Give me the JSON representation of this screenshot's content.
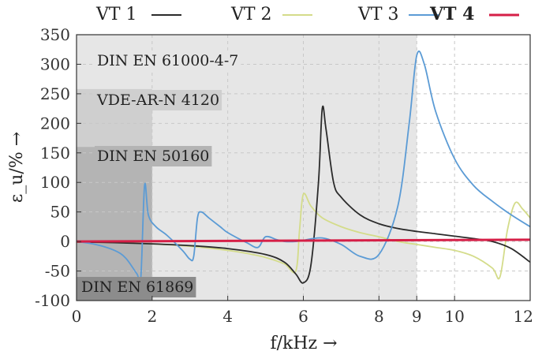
{
  "chart_data": {
    "type": "line",
    "xlabel": "f/kHz →",
    "ylabel": "ε_u/% →",
    "xlim": [
      0,
      12
    ],
    "ylim": [
      -100,
      350
    ],
    "xticks": [
      0,
      2,
      4,
      6,
      8,
      9,
      10,
      12
    ],
    "yticks": [
      -100,
      -50,
      0,
      50,
      100,
      150,
      200,
      250,
      300,
      350
    ],
    "legend_position": "top",
    "regions": [
      {
        "label": "DIN EN 61000-4-7",
        "x": [
          0,
          9
        ],
        "color": "#e6e6e6"
      },
      {
        "label": "VDE-AR-N 4120",
        "x": [
          0,
          2
        ],
        "color": "#cfcfcf"
      },
      {
        "label": "DIN EN 50160",
        "x": [
          0,
          2
        ],
        "color": "#b4b4b4"
      },
      {
        "label": "DIN EN 61869",
        "x": [
          0,
          2
        ],
        "color": "#8c8c8c"
      }
    ],
    "series": [
      {
        "name": "VT 1",
        "color": "#2b2b2b",
        "bold": false,
        "x": [
          0,
          1,
          2,
          3,
          4,
          5,
          5.5,
          5.8,
          6.0,
          6.2,
          6.4,
          6.5,
          6.6,
          6.8,
          7.0,
          7.5,
          8.0,
          8.5,
          9.0,
          9.5,
          10,
          10.5,
          11,
          11.5,
          12
        ],
        "y": [
          -1,
          -2,
          -4,
          -7,
          -12,
          -22,
          -35,
          -55,
          -70,
          -40,
          100,
          225,
          190,
          100,
          75,
          45,
          30,
          22,
          17,
          13,
          9,
          5,
          0,
          -12,
          -35
        ]
      },
      {
        "name": "VT 2",
        "color": "#d4dc8a",
        "bold": false,
        "x": [
          0,
          1,
          2,
          3,
          4,
          4.5,
          5,
          5.5,
          5.8,
          5.9,
          6.0,
          6.2,
          6.5,
          7.0,
          7.5,
          8.0,
          8.5,
          9.0,
          9.5,
          10,
          10.5,
          11,
          11.2,
          11.4,
          11.6,
          11.8,
          12
        ],
        "y": [
          -1,
          -2,
          -4,
          -8,
          -15,
          -20,
          -27,
          -38,
          -50,
          20,
          80,
          60,
          40,
          25,
          15,
          8,
          0,
          -5,
          -10,
          -15,
          -25,
          -45,
          -60,
          20,
          65,
          55,
          40
        ]
      },
      {
        "name": "VT 3",
        "color": "#5b9bd5",
        "bold": false,
        "x": [
          0,
          0.5,
          1.0,
          1.3,
          1.6,
          1.7,
          1.8,
          1.9,
          2.1,
          2.4,
          2.8,
          3.0,
          3.1,
          3.2,
          3.3,
          3.5,
          3.8,
          4.0,
          4.5,
          4.8,
          5.0,
          5.3,
          5.5,
          5.8,
          6.0,
          6.5,
          7.0,
          7.5,
          8.0,
          8.5,
          8.8,
          9.0,
          9.2,
          9.5,
          10.0,
          10.5,
          11.0,
          11.5,
          12.0
        ],
        "y": [
          0,
          -5,
          -15,
          -28,
          -55,
          -62,
          95,
          45,
          25,
          10,
          -15,
          -30,
          -25,
          40,
          50,
          40,
          25,
          15,
          -2,
          -10,
          8,
          3,
          0,
          0,
          2,
          6,
          -5,
          -25,
          -22,
          60,
          200,
          315,
          300,
          220,
          140,
          95,
          68,
          45,
          25
        ]
      },
      {
        "name": "VT 4",
        "color": "#d61f47",
        "bold": true,
        "x": [
          0,
          12
        ],
        "y": [
          0,
          3
        ]
      }
    ]
  }
}
